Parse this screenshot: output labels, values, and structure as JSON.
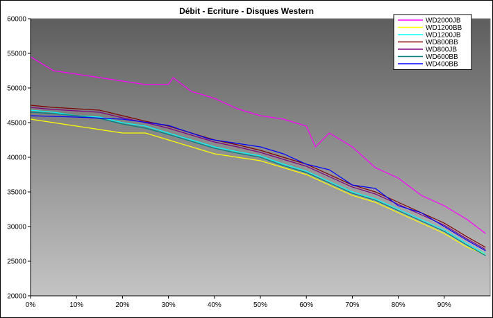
{
  "title": "Débit - Ecriture - Disques Western",
  "chart_data": {
    "type": "line",
    "title": "Débit - Ecriture - Disques Western",
    "xlabel": "",
    "ylabel": "",
    "xlim": [
      0,
      100
    ],
    "ylim": [
      20000,
      60000
    ],
    "x_ticks": [
      "0%",
      "10%",
      "20%",
      "30%",
      "40%",
      "50%",
      "60%",
      "70%",
      "80%",
      "90%"
    ],
    "y_ticks": [
      "20000",
      "25000",
      "30000",
      "35000",
      "40000",
      "45000",
      "50000",
      "55000",
      "60000"
    ],
    "grid": false,
    "legend_position": "top-right",
    "background": "gradient dark gray to light gray",
    "series": [
      {
        "name": "WD2000JB",
        "color": "#ff00ff",
        "x": [
          0,
          5,
          10,
          15,
          20,
          25,
          30,
          31,
          35,
          40,
          45,
          50,
          55,
          60,
          62,
          65,
          70,
          75,
          80,
          85,
          90,
          95,
          99
        ],
        "y": [
          54500,
          52500,
          52000,
          51500,
          51000,
          50500,
          50500,
          51500,
          49500,
          48500,
          47000,
          46000,
          45500,
          44500,
          41500,
          43500,
          41500,
          38500,
          37000,
          34500,
          33000,
          31000,
          29000
        ]
      },
      {
        "name": "WD1200BB",
        "color": "#ffff00",
        "x": [
          0,
          5,
          10,
          15,
          20,
          25,
          30,
          35,
          40,
          45,
          50,
          55,
          60,
          65,
          70,
          75,
          80,
          85,
          90,
          95,
          99
        ],
        "y": [
          45500,
          45000,
          44500,
          44000,
          43500,
          43500,
          42500,
          41500,
          40500,
          40000,
          39500,
          38500,
          37500,
          36000,
          34500,
          33500,
          32000,
          30500,
          29000,
          27000,
          26000
        ]
      },
      {
        "name": "WD1200JB",
        "color": "#00ffff",
        "x": [
          0,
          5,
          10,
          15,
          20,
          25,
          30,
          35,
          40,
          45,
          50,
          55,
          60,
          65,
          70,
          75,
          80,
          85,
          90,
          95,
          99
        ],
        "y": [
          46800,
          46500,
          46000,
          45800,
          45000,
          44500,
          43500,
          42500,
          41500,
          40800,
          40200,
          39000,
          38000,
          36500,
          35000,
          34000,
          32500,
          31000,
          29500,
          27500,
          26000
        ]
      },
      {
        "name": "WD800BB",
        "color": "#800000",
        "x": [
          0,
          5,
          10,
          15,
          20,
          25,
          30,
          35,
          40,
          45,
          50,
          55,
          60,
          65,
          70,
          75,
          80,
          85,
          90,
          95,
          99
        ],
        "y": [
          47500,
          47200,
          47000,
          46800,
          46000,
          45200,
          44500,
          43500,
          42500,
          41800,
          41000,
          40000,
          39000,
          37500,
          36000,
          35000,
          33500,
          32000,
          30500,
          28500,
          27000
        ]
      },
      {
        "name": "WD800JB",
        "color": "#800080",
        "x": [
          0,
          5,
          10,
          15,
          20,
          25,
          30,
          35,
          40,
          45,
          50,
          55,
          60,
          65,
          70,
          75,
          80,
          85,
          90,
          95,
          99
        ],
        "y": [
          47200,
          46900,
          46700,
          46500,
          45700,
          45000,
          44200,
          43200,
          42200,
          41500,
          40700,
          39700,
          38700,
          37200,
          35700,
          34700,
          33200,
          31700,
          30200,
          28200,
          26700
        ]
      },
      {
        "name": "WD600BB",
        "color": "#008080",
        "x": [
          0,
          5,
          10,
          15,
          20,
          25,
          30,
          35,
          40,
          45,
          50,
          55,
          60,
          65,
          70,
          75,
          80,
          85,
          90,
          95,
          99
        ],
        "y": [
          46500,
          46300,
          46000,
          45600,
          44800,
          44200,
          43300,
          42300,
          41300,
          40600,
          40000,
          38800,
          37800,
          36300,
          34800,
          33800,
          32300,
          30800,
          29300,
          27300,
          25800
        ]
      },
      {
        "name": "WD400BB",
        "color": "#0000ff",
        "x": [
          0,
          10,
          20,
          30,
          39,
          45,
          50,
          55,
          60,
          65,
          70,
          75,
          80,
          85,
          90,
          95,
          99
        ],
        "y": [
          46000,
          45800,
          45500,
          44600,
          42600,
          42000,
          41500,
          40500,
          39000,
          38200,
          36000,
          35500,
          33000,
          32000,
          30000,
          28000,
          26500
        ]
      }
    ]
  }
}
